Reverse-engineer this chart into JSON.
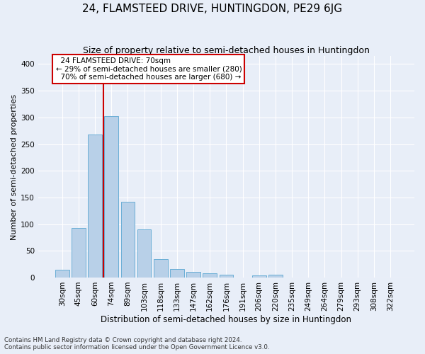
{
  "title": "24, FLAMSTEED DRIVE, HUNTINGDON, PE29 6JG",
  "subtitle": "Size of property relative to semi-detached houses in Huntingdon",
  "xlabel": "Distribution of semi-detached houses by size in Huntingdon",
  "ylabel": "Number of semi-detached properties",
  "footer1": "Contains HM Land Registry data © Crown copyright and database right 2024.",
  "footer2": "Contains public sector information licensed under the Open Government Licence v3.0.",
  "categories": [
    "30sqm",
    "45sqm",
    "60sqm",
    "74sqm",
    "89sqm",
    "103sqm",
    "118sqm",
    "133sqm",
    "147sqm",
    "162sqm",
    "176sqm",
    "191sqm",
    "206sqm",
    "220sqm",
    "235sqm",
    "249sqm",
    "264sqm",
    "279sqm",
    "293sqm",
    "308sqm",
    "322sqm"
  ],
  "values": [
    14,
    93,
    268,
    303,
    142,
    90,
    34,
    16,
    11,
    8,
    5,
    0,
    4,
    5,
    0,
    0,
    0,
    0,
    0,
    0,
    0
  ],
  "bar_color": "#b8d0e8",
  "bar_edge_color": "#6aaed6",
  "property_line_color": "#cc0000",
  "property_line_x": 2.5,
  "annotation_text": "  24 FLAMSTEED DRIVE: 70sqm\n← 29% of semi-detached houses are smaller (280)\n  70% of semi-detached houses are larger (680) →",
  "annotation_box_color": "white",
  "annotation_box_edge_color": "#cc0000",
  "ylim": [
    0,
    415
  ],
  "yticks": [
    0,
    50,
    100,
    150,
    200,
    250,
    300,
    350,
    400
  ],
  "background_color": "#e8eef8",
  "grid_color": "white",
  "title_fontsize": 11,
  "subtitle_fontsize": 9,
  "axis_label_fontsize": 8.5,
  "tick_fontsize": 7.5,
  "annotation_fontsize": 7.5,
  "ylabel_fontsize": 8
}
